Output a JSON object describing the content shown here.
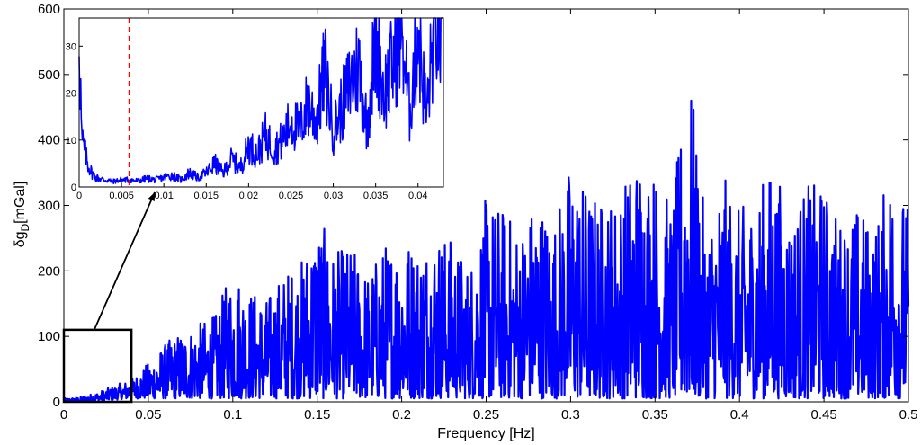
{
  "chart_data": [
    {
      "type": "line",
      "panel": "main",
      "xlabel": "Frequency [Hz]",
      "ylabel_main": "δg",
      "ylabel_subscript": "D",
      "ylabel_unit": "[mGal]",
      "xlim": [
        0,
        0.5
      ],
      "ylim": [
        0,
        600
      ],
      "x_ticks": [
        0,
        0.05,
        0.1,
        0.15,
        0.2,
        0.25,
        0.3,
        0.35,
        0.4,
        0.45,
        0.5
      ],
      "x_tick_labels": [
        "0",
        "0.05",
        "0.1",
        "0.15",
        "0.2",
        "0.25",
        "0.3",
        "0.35",
        "0.4",
        "0.45",
        "0.5"
      ],
      "y_ticks": [
        0,
        100,
        200,
        300,
        400,
        500,
        600
      ],
      "y_tick_labels": [
        "0",
        "100",
        "200",
        "300",
        "400",
        "500",
        "600"
      ],
      "grid": false,
      "line_color": "#0000ff",
      "series": [
        {
          "x": [
            0,
            0.01,
            0.02,
            0.03,
            0.04,
            0.05,
            0.06,
            0.07,
            0.08,
            0.09,
            0.1,
            0.11,
            0.12,
            0.13,
            0.14,
            0.15,
            0.16,
            0.17,
            0.18,
            0.19,
            0.2,
            0.21,
            0.22,
            0.23,
            0.24,
            0.25,
            0.26,
            0.27,
            0.28,
            0.29,
            0.3,
            0.31,
            0.32,
            0.33,
            0.34,
            0.35,
            0.36,
            0.37,
            0.38,
            0.39,
            0.4,
            0.41,
            0.42,
            0.43,
            0.44,
            0.45,
            0.46,
            0.47,
            0.48,
            0.49,
            0.5
          ],
          "y_upper": [
            5,
            8,
            15,
            25,
            35,
            60,
            90,
            110,
            120,
            135,
            210,
            175,
            160,
            200,
            215,
            290,
            230,
            240,
            200,
            245,
            260,
            245,
            270,
            250,
            210,
            315,
            300,
            270,
            320,
            280,
            370,
            330,
            310,
            330,
            390,
            360,
            300,
            525,
            270,
            350,
            295,
            320,
            370,
            290,
            335,
            330,
            280,
            300,
            270,
            370,
            300
          ],
          "y_lower": [
            0,
            0,
            1,
            3,
            5,
            5,
            5,
            5,
            5,
            5,
            5,
            5,
            5,
            5,
            5,
            5,
            5,
            5,
            5,
            5,
            5,
            5,
            5,
            5,
            5,
            5,
            5,
            5,
            5,
            5,
            5,
            5,
            5,
            5,
            5,
            5,
            5,
            5,
            5,
            5,
            5,
            5,
            5,
            5,
            5,
            5,
            5,
            5,
            5,
            5,
            5
          ]
        }
      ],
      "annotations": {
        "zoom_box_x": [
          0,
          0.04
        ],
        "zoom_box_y": [
          0,
          110
        ]
      }
    },
    {
      "type": "line",
      "panel": "inset",
      "xlim": [
        0,
        0.043
      ],
      "ylim": [
        0,
        36
      ],
      "x_ticks": [
        0,
        0.005,
        0.01,
        0.015,
        0.02,
        0.025,
        0.03,
        0.035,
        0.04
      ],
      "x_tick_labels": [
        "0",
        "0.005",
        "0.01",
        "0.015",
        "0.02",
        "0.025",
        "0.03",
        "0.035",
        "0.04"
      ],
      "y_ticks": [
        0,
        10,
        20,
        30
      ],
      "y_tick_labels": [
        "0",
        "10",
        "20",
        "30"
      ],
      "line_color": "#0000ff",
      "reference_line": {
        "x": 0.0059,
        "color": "#ff0000",
        "style": "dashed"
      },
      "series": [
        {
          "x": [
            0,
            0.0003,
            0.0006,
            0.001,
            0.0015,
            0.002,
            0.003,
            0.004,
            0.005,
            0.006,
            0.007,
            0.008,
            0.009,
            0.01,
            0.011,
            0.012,
            0.013,
            0.014,
            0.015,
            0.016,
            0.017,
            0.018,
            0.019,
            0.02,
            0.021,
            0.022,
            0.023,
            0.024,
            0.025,
            0.026,
            0.027,
            0.028,
            0.029,
            0.03,
            0.031,
            0.032,
            0.033,
            0.034,
            0.035,
            0.036,
            0.037,
            0.038,
            0.039,
            0.04,
            0.041,
            0.042,
            0.043
          ],
          "y": [
            35,
            10,
            8,
            5,
            3,
            2,
            1.5,
            1.2,
            1.5,
            1.5,
            1.3,
            1.8,
            1.5,
            2,
            2.5,
            1.5,
            3,
            2,
            3,
            5,
            3,
            6,
            4,
            9,
            7,
            11,
            8,
            10,
            14,
            12,
            18,
            14,
            25,
            12,
            17,
            22,
            26,
            13,
            32,
            20,
            26,
            35,
            16,
            34,
            15,
            36,
            30
          ]
        }
      ]
    }
  ]
}
